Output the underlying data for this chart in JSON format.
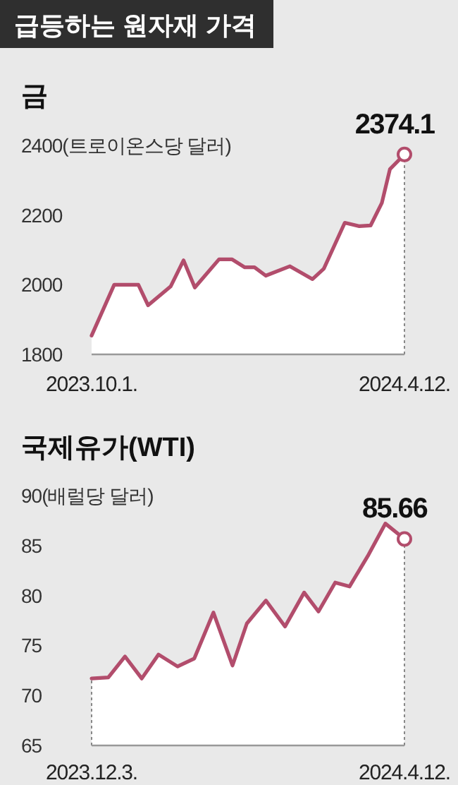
{
  "chart_data": [
    {
      "type": "area",
      "title": "급등하는 원자재 가격",
      "subtitle": "금",
      "x": [
        "2023-10-01",
        "2023-10-15",
        "2023-10-30",
        "2023-11-05",
        "2023-11-19",
        "2023-11-27",
        "2023-12-04",
        "2023-12-19",
        "2023-12-27",
        "2024-01-04",
        "2024-01-10",
        "2024-01-17",
        "2024-02-01",
        "2024-02-15",
        "2024-02-22",
        "2024-03-06",
        "2024-03-15",
        "2024-03-22",
        "2024-03-29",
        "2024-04-03",
        "2024-04-12"
      ],
      "series": [
        {
          "color": "#b24d6c",
          "values": [
            1854,
            2000,
            2000,
            1941,
            1995,
            2070,
            1992,
            2073,
            2073,
            2050,
            2050,
            2026,
            2053,
            2016,
            2046,
            2178,
            2168,
            2170,
            2235,
            2332,
            2374.1
          ]
        }
      ],
      "xlim": [
        "2023-10-01",
        "2024-04-12"
      ],
      "xticks": [
        {
          "value": "2023-10-01",
          "label": "2023.10.1."
        },
        {
          "value": "2024-04-12",
          "label": "2024.4.12."
        }
      ],
      "ylim": [
        1800,
        2400
      ],
      "yticks": [
        1800,
        2000,
        2200,
        {
          "value": 2400,
          "label": "2400(트로이온스당 달러)"
        }
      ],
      "ref_lines": [
        {
          "axis": "x",
          "value": "2024-04-12",
          "color": "#888888",
          "line_style": "dotted"
        }
      ],
      "annotations": [
        {
          "text": "2374.1",
          "x": "2024-04-12",
          "y": 2374.1
        }
      ]
    },
    {
      "type": "area",
      "title": "국제유가(WTI)",
      "x": [
        "2023-12-03",
        "2023-12-10",
        "2023-12-17",
        "2023-12-24",
        "2023-12-31",
        "2024-01-08",
        "2024-01-15",
        "2024-01-23",
        "2024-01-31",
        "2024-02-06",
        "2024-02-14",
        "2024-02-22",
        "2024-03-01",
        "2024-03-07",
        "2024-03-14",
        "2024-03-20",
        "2024-03-28",
        "2024-04-04",
        "2024-04-12"
      ],
      "series": [
        {
          "color": "#b24d6c",
          "values": [
            71.7,
            71.8,
            73.9,
            71.7,
            74.1,
            72.9,
            73.7,
            78.3,
            73.0,
            77.2,
            79.5,
            76.9,
            80.3,
            78.4,
            81.3,
            80.9,
            84.1,
            87.2,
            85.66
          ]
        }
      ],
      "xlim": [
        "2023-12-03",
        "2024-04-12"
      ],
      "xticks": [
        {
          "value": "2023-12-03",
          "label": "2023.12.3."
        },
        {
          "value": "2024-04-12",
          "label": "2024.4.12."
        }
      ],
      "ylim": [
        65,
        90
      ],
      "yticks": [
        65,
        70,
        75,
        80,
        85,
        {
          "value": 90,
          "label": "90(배럴당 달러)"
        }
      ],
      "ref_lines": [
        {
          "axis": "x",
          "value": "2023-12-03",
          "color": "#888888",
          "line_style": "dotted"
        },
        {
          "axis": "x",
          "value": "2024-04-12",
          "color": "#888888",
          "line_style": "dotted"
        }
      ],
      "annotations": [
        {
          "text": "85.66",
          "x": "2024-04-12",
          "y": 85.66
        }
      ]
    }
  ]
}
